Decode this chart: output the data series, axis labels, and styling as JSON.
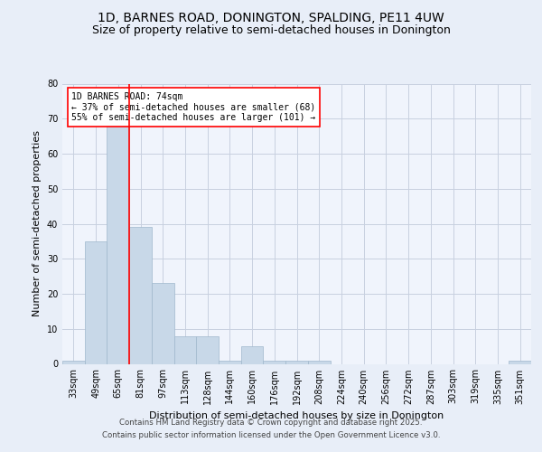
{
  "title1": "1D, BARNES ROAD, DONINGTON, SPALDING, PE11 4UW",
  "title2": "Size of property relative to semi-detached houses in Donington",
  "xlabel": "Distribution of semi-detached houses by size in Donington",
  "ylabel": "Number of semi-detached properties",
  "categories": [
    "33sqm",
    "49sqm",
    "65sqm",
    "81sqm",
    "97sqm",
    "113sqm",
    "128sqm",
    "144sqm",
    "160sqm",
    "176sqm",
    "192sqm",
    "208sqm",
    "224sqm",
    "240sqm",
    "256sqm",
    "272sqm",
    "287sqm",
    "303sqm",
    "319sqm",
    "335sqm",
    "351sqm"
  ],
  "values": [
    1,
    35,
    68,
    39,
    23,
    8,
    8,
    1,
    5,
    1,
    1,
    1,
    0,
    0,
    0,
    0,
    0,
    0,
    0,
    0,
    1
  ],
  "bar_color": "#c8d8e8",
  "bar_edge_color": "#a0b8cc",
  "bar_linewidth": 0.5,
  "redline_x": 2.5,
  "annotation_title": "1D BARNES ROAD: 74sqm",
  "annotation_line2": "← 37% of semi-detached houses are smaller (68)",
  "annotation_line3": "55% of semi-detached houses are larger (101) →",
  "footnote1": "Contains HM Land Registry data © Crown copyright and database right 2025.",
  "footnote2": "Contains public sector information licensed under the Open Government Licence v3.0.",
  "ylim": [
    0,
    80
  ],
  "yticks": [
    0,
    10,
    20,
    30,
    40,
    50,
    60,
    70,
    80
  ],
  "bg_color": "#e8eef8",
  "plot_bg_color": "#f0f4fc",
  "grid_color": "#c8d0e0",
  "title1_fontsize": 10,
  "title2_fontsize": 9,
  "axis_fontsize": 8,
  "tick_fontsize": 7
}
